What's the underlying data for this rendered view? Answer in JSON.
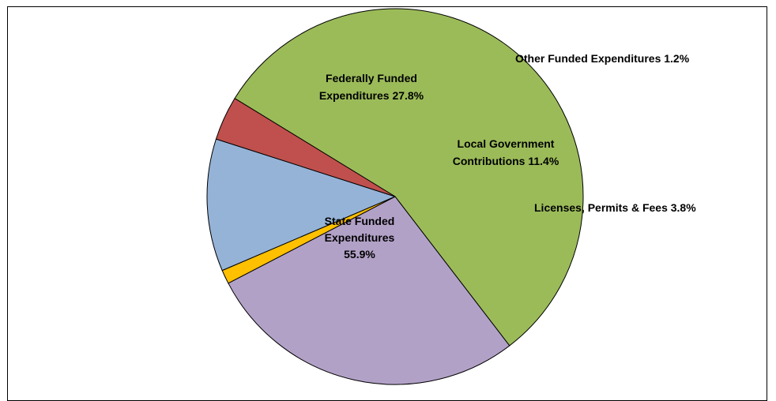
{
  "chart_data": {
    "type": "pie",
    "title": "",
    "slices": [
      {
        "label": "State Funded Expenditures",
        "value": 55.9,
        "color": "#9BBB59",
        "label_lines": [
          "State Funded",
          "Expenditures",
          "55.9%"
        ]
      },
      {
        "label": "Federally Funded Expenditures",
        "value": 27.8,
        "color": "#B2A1C7",
        "label_lines": [
          "Federally Funded",
          "Expenditures 27.8%"
        ]
      },
      {
        "label": "Other Funded Expenditures",
        "value": 1.2,
        "color": "#FFC000",
        "label_lines": [
          "Other Funded Expenditures 1.2%"
        ]
      },
      {
        "label": "Local Government Contributions",
        "value": 11.4,
        "color": "#95B3D7",
        "label_lines": [
          "Local Government",
          "Contributions 11.4%"
        ]
      },
      {
        "label": "Licenses, Permits & Fees",
        "value": 3.8,
        "color": "#C0504D",
        "label_lines": [
          "Licenses, Permits & Fees 3.8%"
        ]
      }
    ],
    "legend": "none"
  }
}
